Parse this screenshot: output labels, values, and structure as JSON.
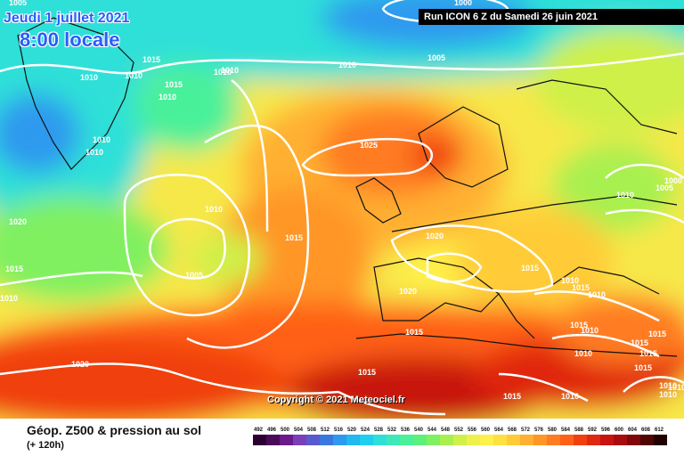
{
  "map": {
    "valid_time_line1": "Jeudi 1 juillet 2021",
    "valid_time_line2": "8:00 locale",
    "run_info": "Run ICON 6 Z du Samedi 26 juin 2021",
    "copyright": "Copyright © 2021 Meteociel.fr",
    "isobar_labels": [
      "1005",
      "1000",
      "1005",
      "1010",
      "1010",
      "1015",
      "1010",
      "1010",
      "1015",
      "1010",
      "1010",
      "1010",
      "1010",
      "1025",
      "1010",
      "1005",
      "1000",
      "1020",
      "1010",
      "1015",
      "1005",
      "1015",
      "1020",
      "1015",
      "1010",
      "1015",
      "1010",
      "1015",
      "1010",
      "1020",
      "1010",
      "1015",
      "1010",
      "1015",
      "1015",
      "1015",
      "1015",
      "1010",
      "1010",
      "1015",
      "1015",
      "1010",
      "1010",
      "1020"
    ]
  },
  "footer": {
    "title": "Géop. Z500 & pression au sol",
    "subtitle": "(+ 120h)"
  },
  "legend": {
    "values": [
      "492",
      "496",
      "500",
      "504",
      "508",
      "512",
      "516",
      "520",
      "524",
      "528",
      "532",
      "536",
      "540",
      "544",
      "548",
      "552",
      "556",
      "560",
      "564",
      "568",
      "572",
      "576",
      "580",
      "584",
      "588",
      "592",
      "596",
      "600",
      "604",
      "608",
      "612"
    ],
    "colors": [
      "#2b0030",
      "#4a0a5a",
      "#6b1a8a",
      "#7a40b8",
      "#5a5ad0",
      "#3a78e0",
      "#2e9aee",
      "#22b8f0",
      "#1ed0f0",
      "#2ee0d8",
      "#3ee8b8",
      "#4af09a",
      "#5ef07a",
      "#80f060",
      "#a8f050",
      "#cff04a",
      "#f0f04a",
      "#fff04a",
      "#ffe040",
      "#ffcc38",
      "#ffb030",
      "#ff9628",
      "#ff7c20",
      "#ff6018",
      "#f04010",
      "#e02810",
      "#c81410",
      "#a80c0c",
      "#800808",
      "#500404",
      "#200000"
    ]
  }
}
